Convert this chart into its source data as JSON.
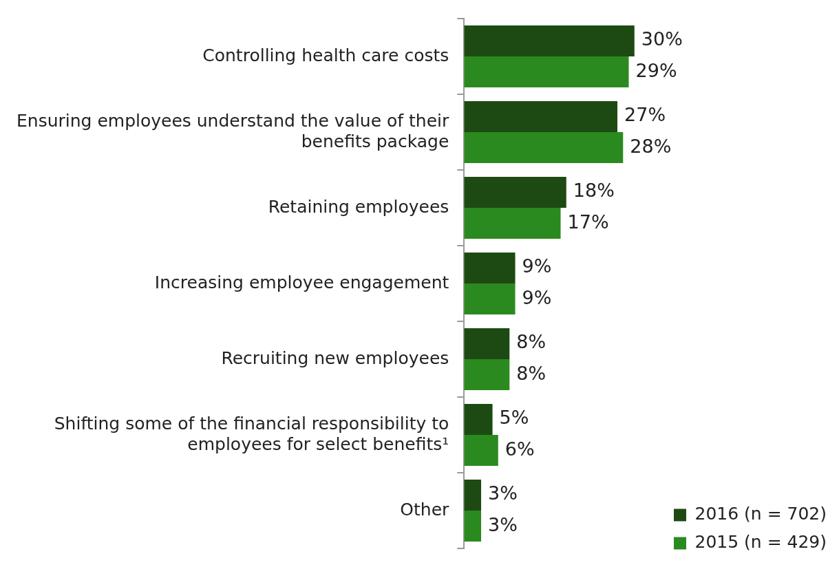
{
  "chart_data": {
    "type": "bar",
    "orientation": "horizontal",
    "categories": [
      "Controlling health care costs",
      "Ensuring employees understand the value of their benefits package",
      "Retaining employees",
      "Increasing employee engagement",
      "Recruiting new employees",
      "Shifting some of the financial responsibility to employees for select benefits¹",
      "Other"
    ],
    "series": [
      {
        "name": "2016 (n = 702)",
        "color": "#1d4a12",
        "values": [
          30,
          27,
          18,
          9,
          8,
          5,
          3
        ],
        "value_labels": [
          "30%",
          "27%",
          "18%",
          "9%",
          "8%",
          "5%",
          "3%"
        ]
      },
      {
        "name": "2015 (n = 429)",
        "color": "#2b8a1f",
        "values": [
          29,
          28,
          17,
          9,
          8,
          6,
          3
        ],
        "value_labels": [
          "29%",
          "28%",
          "17%",
          "9%",
          "8%",
          "6%",
          "3%"
        ]
      }
    ],
    "legend": "bottom right",
    "grid": false
  }
}
